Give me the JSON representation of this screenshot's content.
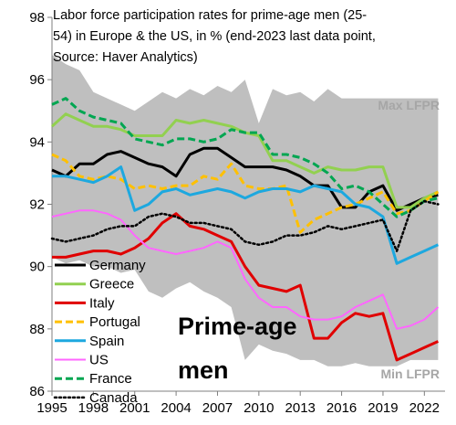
{
  "chart_data": {
    "type": "line",
    "title_lines": [
      "Labor force participation rates for prime-age men (25-",
      "54) in Europe & the US, in % (end-2023 last data point,",
      "Source: Haver Analytics)"
    ],
    "annotation": "Prime-age men",
    "annotation_lines": [
      "Prime-age",
      "men"
    ],
    "band_labels": {
      "max": "Max LFPR",
      "min": "Min LFPR"
    },
    "xlim": [
      1995,
      2023.5
    ],
    "ylim": [
      86,
      98
    ],
    "x_ticks": [
      1995,
      1998,
      2001,
      2004,
      2007,
      2010,
      2013,
      2016,
      2019,
      2022
    ],
    "y_ticks": [
      86,
      88,
      90,
      92,
      94,
      96,
      98
    ],
    "grid": false,
    "legend_position": "lower-left",
    "band": {
      "x": [
        1995,
        1996,
        1997,
        1998,
        1999,
        2000,
        2001,
        2002,
        2003,
        2004,
        2005,
        2006,
        2007,
        2008,
        2009,
        2010,
        2011,
        2012,
        2013,
        2014,
        2015,
        2016,
        2017,
        2018,
        2019,
        2020,
        2021,
        2022,
        2023
      ],
      "max": [
        96.8,
        96.5,
        96.3,
        95.6,
        95.4,
        95.2,
        95.0,
        95.3,
        95.6,
        95.4,
        95.7,
        95.5,
        95.8,
        95.6,
        96.0,
        94.6,
        95.7,
        95.5,
        95.6,
        95.3,
        95.7,
        95.4,
        95.4,
        95.4,
        95.4,
        95.4,
        95.4,
        95.4,
        95.4
      ],
      "min": [
        90.3,
        90.1,
        90.2,
        90.0,
        90.0,
        89.8,
        89.9,
        89.2,
        89.0,
        89.3,
        89.5,
        89.2,
        89.0,
        88.7,
        87.0,
        87.5,
        87.3,
        87.2,
        87.0,
        87.0,
        86.8,
        86.8,
        86.9,
        86.8,
        86.8,
        86.8,
        87.0,
        87.0,
        87.0
      ]
    },
    "x": [
      1995,
      1996,
      1997,
      1998,
      1999,
      2000,
      2001,
      2002,
      2003,
      2004,
      2005,
      2006,
      2007,
      2008,
      2009,
      2010,
      2011,
      2012,
      2013,
      2014,
      2015,
      2016,
      2017,
      2018,
      2019,
      2020,
      2021,
      2022,
      2023
    ],
    "series": [
      {
        "name": "Germany",
        "color": "#000000",
        "dash": "solid",
        "width": 3,
        "values": [
          93.1,
          92.9,
          93.3,
          93.3,
          93.6,
          93.7,
          93.5,
          93.3,
          93.2,
          92.9,
          93.6,
          93.8,
          93.8,
          93.5,
          93.2,
          93.2,
          93.2,
          93.1,
          92.9,
          92.6,
          92.6,
          91.9,
          91.9,
          92.4,
          92.6,
          91.8,
          92.0,
          92.2,
          92.3
        ]
      },
      {
        "name": "Greece",
        "color": "#92d050",
        "dash": "solid",
        "width": 3,
        "values": [
          94.5,
          94.9,
          94.7,
          94.5,
          94.5,
          94.4,
          94.2,
          94.2,
          94.2,
          94.7,
          94.6,
          94.7,
          94.6,
          94.5,
          94.3,
          94.2,
          93.4,
          93.4,
          93.2,
          93.0,
          93.2,
          93.1,
          93.1,
          93.2,
          93.2,
          91.9,
          91.9,
          92.2,
          92.4
        ]
      },
      {
        "name": "Italy",
        "color": "#e00000",
        "dash": "solid",
        "width": 3,
        "values": [
          90.3,
          90.3,
          90.4,
          90.5,
          90.5,
          90.4,
          90.6,
          90.9,
          91.4,
          91.7,
          91.3,
          91.2,
          91.0,
          90.8,
          90.0,
          89.4,
          89.3,
          89.2,
          89.4,
          87.7,
          87.7,
          88.2,
          88.5,
          88.4,
          88.5,
          87.0,
          87.2,
          87.4,
          87.6
        ]
      },
      {
        "name": "Portugal",
        "color": "#ffc000",
        "dash": "dashed",
        "width": 3,
        "values": [
          93.6,
          93.4,
          92.9,
          92.8,
          92.9,
          92.8,
          92.5,
          92.6,
          92.5,
          92.6,
          92.6,
          92.9,
          92.8,
          93.3,
          92.6,
          92.5,
          92.5,
          92.6,
          91.1,
          91.5,
          91.7,
          91.9,
          92.0,
          92.2,
          92.4,
          91.7,
          91.8,
          92.1,
          92.4
        ]
      },
      {
        "name": "Spain",
        "color": "#1da8df",
        "dash": "solid",
        "width": 3,
        "values": [
          92.9,
          92.9,
          92.8,
          92.7,
          92.9,
          93.2,
          91.8,
          92.0,
          92.4,
          92.5,
          92.3,
          92.4,
          92.5,
          92.4,
          92.2,
          92.4,
          92.5,
          92.5,
          92.4,
          92.6,
          92.5,
          92.4,
          92.0,
          91.9,
          91.6,
          90.1,
          90.3,
          90.5,
          90.7
        ]
      },
      {
        "name": "US",
        "color": "#ff66ff",
        "dash": "solid",
        "width": 2,
        "values": [
          91.6,
          91.7,
          91.8,
          91.8,
          91.7,
          91.5,
          91.0,
          90.6,
          90.5,
          90.4,
          90.5,
          90.6,
          90.8,
          90.6,
          89.6,
          89.0,
          88.7,
          88.7,
          88.4,
          88.3,
          88.3,
          88.4,
          88.7,
          88.9,
          89.1,
          88.0,
          88.1,
          88.3,
          88.7
        ]
      },
      {
        "name": "France",
        "color": "#00a651",
        "dash": "dashed",
        "width": 3,
        "values": [
          95.2,
          95.4,
          95.0,
          94.8,
          94.7,
          94.6,
          94.1,
          94.0,
          93.9,
          94.1,
          94.1,
          94.0,
          94.1,
          94.4,
          94.3,
          94.3,
          93.6,
          93.6,
          93.5,
          93.3,
          93.0,
          92.5,
          92.6,
          92.4,
          92.0,
          91.6,
          91.8,
          92.1,
          92.2
        ]
      },
      {
        "name": "Canada",
        "color": "#000000",
        "dash": "dotted",
        "width": 2.5,
        "values": [
          90.9,
          90.8,
          90.9,
          91.0,
          91.2,
          91.3,
          91.3,
          91.6,
          91.7,
          91.6,
          91.4,
          91.4,
          91.3,
          91.2,
          90.8,
          90.7,
          90.8,
          91.0,
          91.0,
          91.1,
          91.3,
          91.2,
          91.3,
          91.4,
          91.5,
          90.5,
          91.8,
          92.1,
          92.0
        ]
      }
    ]
  }
}
